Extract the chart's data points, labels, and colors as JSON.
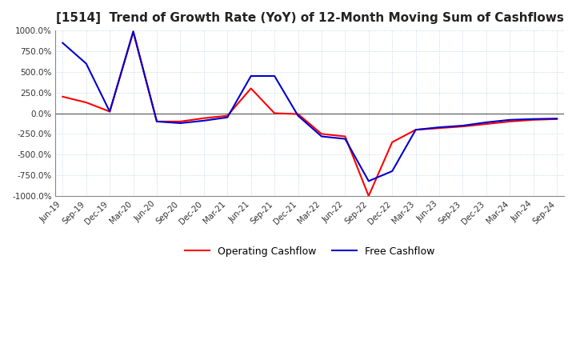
{
  "title": "[1514]  Trend of Growth Rate (YoY) of 12-Month Moving Sum of Cashflows",
  "title_fontsize": 11,
  "ylim": [
    -1000,
    1000
  ],
  "yticks": [
    -1000,
    -750,
    -500,
    -250,
    0,
    250,
    500,
    750,
    1000
  ],
  "x_labels": [
    "Jun-19",
    "Sep-19",
    "Dec-19",
    "Mar-20",
    "Jun-20",
    "Sep-20",
    "Dec-20",
    "Mar-21",
    "Jun-21",
    "Sep-21",
    "Dec-21",
    "Mar-22",
    "Jun-22",
    "Sep-22",
    "Dec-22",
    "Mar-23",
    "Jun-23",
    "Sep-23",
    "Dec-23",
    "Mar-24",
    "Jun-24",
    "Sep-24"
  ],
  "operating_cashflow": [
    200,
    130,
    20,
    980,
    -100,
    -100,
    -60,
    -30,
    300,
    0,
    -10,
    -250,
    -280,
    -1000,
    -350,
    -200,
    -180,
    -160,
    -130,
    -100,
    -80,
    -70
  ],
  "free_cashflow": [
    850,
    600,
    20,
    990,
    -100,
    -120,
    -90,
    -50,
    450,
    450,
    -30,
    -280,
    -310,
    -820,
    -700,
    -200,
    -170,
    -150,
    -110,
    -80,
    -70,
    -65
  ],
  "op_color": "#ff0000",
  "free_color": "#0000cd",
  "background_color": "#ffffff",
  "grid_color": "#b0c8e0",
  "legend_labels": [
    "Operating Cashflow",
    "Free Cashflow"
  ]
}
